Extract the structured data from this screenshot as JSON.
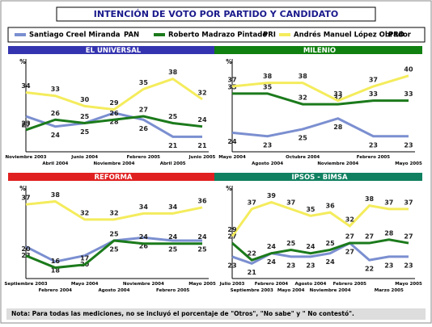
{
  "title": "INTENCIÓN DE VOTO POR PARTIDO Y CANDIDATO",
  "legend": [
    {
      "name": "Santiago Creel Miranda",
      "party": "PAN",
      "color": "#7b8fd0"
    },
    {
      "name": "Roberto Madrazo Pintado",
      "party": "PRI",
      "color": "#1b7a1b"
    },
    {
      "name": "Andrés Manuel López Obrador",
      "party": "PRD",
      "color": "#f4ec5c"
    }
  ],
  "note": "Nota: Para todas las mediciones, no se incluyó el porcentaje de \"Otros\", \"No sabe\" y \" No contestó\".",
  "chart_data": [
    {
      "type": "line",
      "title": "EL UNIVERSAL",
      "color": "#3434b0",
      "ylabel": "%",
      "ylim": [
        18,
        41
      ],
      "categories": [
        "Noviembre 2003",
        "Abril 2004",
        "Junio 2004",
        "Noviembre 2004",
        "Febrero 2005",
        "Abril 2005",
        "Junio 2005"
      ],
      "series": [
        {
          "values": [
            27,
            24,
            25,
            28,
            26,
            21,
            21
          ]
        },
        {
          "values": [
            23,
            26,
            25,
            26,
            27,
            25,
            24
          ]
        },
        {
          "values": [
            34,
            33,
            30,
            29,
            35,
            38,
            32
          ]
        }
      ]
    },
    {
      "type": "line",
      "title": "MILENIO",
      "color": "#108010",
      "ylabel": "%",
      "ylim": [
        20,
        42
      ],
      "categories": [
        "Mayo 2004",
        "Agosto 2004",
        "Octubre 2004",
        "Noviembre 2004",
        "Febrero 2005",
        "Mayo 2005"
      ],
      "series": [
        {
          "values": [
            24,
            23,
            25,
            28,
            23,
            23
          ]
        },
        {
          "values": [
            35,
            35,
            32,
            32,
            33,
            33
          ]
        },
        {
          "values": [
            37,
            38,
            38,
            33,
            37,
            40
          ]
        }
      ]
    },
    {
      "type": "line",
      "title": "REFORMA",
      "color": "#e02020",
      "ylabel": "%",
      "ylim": [
        14,
        40
      ],
      "categories": [
        "Septiembre 2003",
        "Febrero 2004",
        "Mayo 2004",
        "Agosto 2004",
        "Noviembre 2004",
        "Febrero 2005",
        "Mayo 2005"
      ],
      "series": [
        {
          "values": [
            23,
            18,
            20,
            25,
            26,
            25,
            25
          ]
        },
        {
          "values": [
            20,
            16,
            17,
            25,
            24,
            24,
            24
          ]
        },
        {
          "values": [
            37,
            38,
            32,
            32,
            34,
            34,
            36
          ]
        }
      ]
    },
    {
      "type": "line",
      "title": "IPSOS - BIMSA",
      "color": "#108060",
      "ylabel": "%",
      "ylim": [
        18,
        41
      ],
      "categories": [
        "Julio 2003",
        "Septiembre 2003",
        "Febrero 2004",
        "Mayo 2004",
        "Agosto 2004",
        "Noviembre 2004",
        "Febrero 2005",
        null,
        "Marzo 2005",
        "Mayo 2005"
      ],
      "series": [
        {
          "values": [
            23,
            21,
            24,
            23,
            23,
            24,
            27,
            22,
            23,
            23
          ]
        },
        {
          "values": [
            27,
            22,
            24,
            25,
            24,
            25,
            27,
            27,
            28,
            27
          ]
        },
        {
          "values": [
            29,
            37,
            39,
            37,
            35,
            36,
            32,
            38,
            37,
            37
          ]
        }
      ]
    }
  ]
}
